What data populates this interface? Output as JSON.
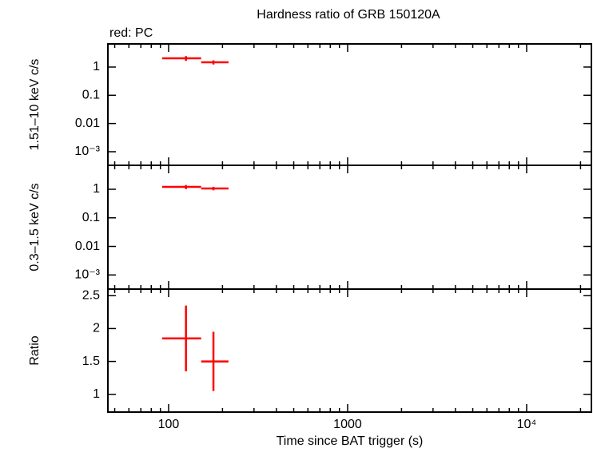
{
  "chart_data": [
    {
      "type": "errorbar",
      "title": "Hardness ratio of GRB 150120A",
      "annotation": "red: PC",
      "ylabel": "1.51–10 keV c/s",
      "xscale": "log",
      "yscale": "log",
      "xlim": [
        45.8,
        23000
      ],
      "ylim": [
        0.00033,
        6.6
      ],
      "xticks": [
        100,
        1000,
        {
          "value": 10000,
          "label": "10⁴"
        }
      ],
      "xticks_minor": [
        50,
        60,
        70,
        80,
        90,
        200,
        300,
        400,
        500,
        600,
        700,
        800,
        900,
        2000,
        3000,
        4000,
        5000,
        6000,
        7000,
        8000,
        9000,
        20000
      ],
      "yticks": [
        1,
        0.1,
        0.01,
        {
          "value": 0.001,
          "label": "10⁻³"
        }
      ],
      "series": [
        {
          "color": "#ff0000",
          "x": [
            125,
            178
          ],
          "xerr_minus": [
            33,
            26
          ],
          "xerr_plus": [
            27,
            38
          ],
          "values": [
            2.05,
            1.48
          ],
          "yerr": [
            0.4,
            0.25
          ]
        }
      ]
    },
    {
      "type": "errorbar",
      "ylabel": "0.3–1.5 keV c/s",
      "xscale": "log",
      "yscale": "log",
      "xlim": [
        45.8,
        23000
      ],
      "ylim": [
        0.00032,
        6.9
      ],
      "xticks": [
        100,
        1000,
        10000
      ],
      "xticks_minor": [
        50,
        60,
        70,
        80,
        90,
        200,
        300,
        400,
        500,
        600,
        700,
        800,
        900,
        2000,
        3000,
        4000,
        5000,
        6000,
        7000,
        8000,
        9000,
        20000
      ],
      "yticks": [
        1,
        0.1,
        0.01,
        {
          "value": 0.001,
          "label": "10⁻³"
        }
      ],
      "series": [
        {
          "color": "#ff0000",
          "x": [
            125,
            178
          ],
          "xerr_minus": [
            33,
            26
          ],
          "xerr_plus": [
            27,
            38
          ],
          "values": [
            1.21,
            1.07
          ],
          "yerr": [
            0.2,
            0.15
          ]
        }
      ]
    },
    {
      "type": "errorbar",
      "ylabel": "Ratio",
      "xlabel": "Time since BAT trigger (s)",
      "xscale": "log",
      "yscale": "linear",
      "xlim": [
        45.8,
        23000
      ],
      "ylim": [
        0.73,
        2.6
      ],
      "xticks": [
        100,
        1000,
        {
          "value": 10000,
          "label": "10⁴"
        }
      ],
      "xticks_minor": [
        50,
        60,
        70,
        80,
        90,
        200,
        300,
        400,
        500,
        600,
        700,
        800,
        900,
        2000,
        3000,
        4000,
        5000,
        6000,
        7000,
        8000,
        9000,
        20000
      ],
      "yticks": [
        1,
        1.5,
        2,
        2.5
      ],
      "series": [
        {
          "color": "#ff0000",
          "x": [
            125,
            178
          ],
          "xerr_minus": [
            33,
            26
          ],
          "xerr_plus": [
            27,
            38
          ],
          "values": [
            1.85,
            1.5
          ],
          "yerr": [
            0.5,
            0.45
          ]
        }
      ]
    }
  ]
}
